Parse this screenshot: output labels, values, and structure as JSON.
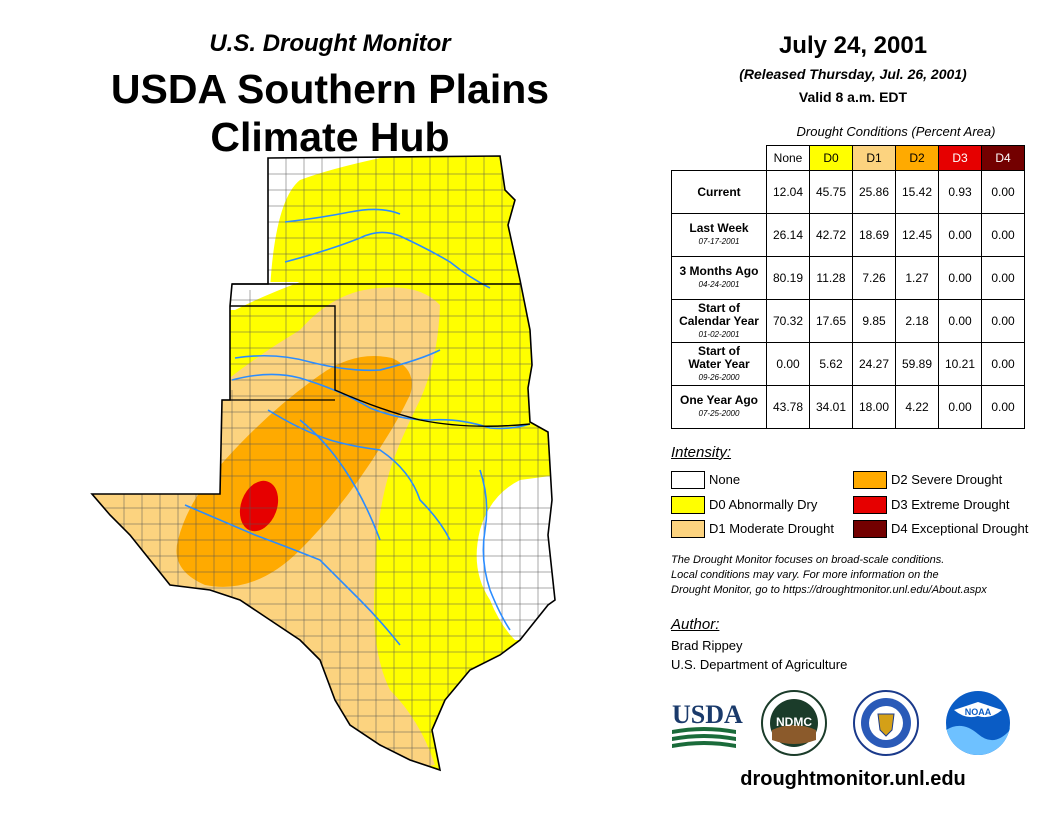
{
  "header": {
    "subtitle": "U.S. Drought Monitor",
    "title_line1": "USDA Southern Plains",
    "title_line2": "Climate Hub"
  },
  "info": {
    "date": "July 24, 2001",
    "released": "(Released Thursday, Jul. 26, 2001)",
    "valid": "Valid 8 a.m. EDT"
  },
  "table": {
    "title": "Drought Conditions (Percent Area)",
    "columns": [
      "None",
      "D0",
      "D1",
      "D2",
      "D3",
      "D4"
    ],
    "rows": [
      {
        "label1": "Current",
        "label2": "",
        "date": "",
        "values": [
          "12.04",
          "45.75",
          "25.86",
          "15.42",
          "0.93",
          "0.00"
        ]
      },
      {
        "label1": "Last Week",
        "label2": "",
        "date": "07-17-2001",
        "values": [
          "26.14",
          "42.72",
          "18.69",
          "12.45",
          "0.00",
          "0.00"
        ]
      },
      {
        "label1": "3 Months Ago",
        "label2": "",
        "date": "04-24-2001",
        "values": [
          "80.19",
          "11.28",
          "7.26",
          "1.27",
          "0.00",
          "0.00"
        ]
      },
      {
        "label1": "Start of",
        "label2": "Calendar Year",
        "date": "01-02-2001",
        "values": [
          "70.32",
          "17.65",
          "9.85",
          "2.18",
          "0.00",
          "0.00"
        ]
      },
      {
        "label1": "Start of",
        "label2": "Water Year",
        "date": "09-26-2000",
        "values": [
          "0.00",
          "5.62",
          "24.27",
          "59.89",
          "10.21",
          "0.00"
        ]
      },
      {
        "label1": "One Year Ago",
        "label2": "",
        "date": "07-25-2000",
        "values": [
          "43.78",
          "34.01",
          "18.00",
          "4.22",
          "0.00",
          "0.00"
        ]
      }
    ]
  },
  "legend": {
    "title": "Intensity:",
    "items": [
      {
        "label": "None",
        "color": "#ffffff"
      },
      {
        "label": "D0 Abnormally Dry",
        "color": "#ffff00"
      },
      {
        "label": "D1 Moderate Drought",
        "color": "#fcd37f"
      },
      {
        "label": "D2 Severe Drought",
        "color": "#ffaa00"
      },
      {
        "label": "D3 Extreme Drought",
        "color": "#e60000"
      },
      {
        "label": "D4 Exceptional Drought",
        "color": "#730000"
      }
    ]
  },
  "note": {
    "line1": "The Drought Monitor focuses on broad-scale conditions.",
    "line2": "Local conditions may vary. For more information on the",
    "line3": "Drought Monitor, go to https://droughtmonitor.unl.edu/About.aspx"
  },
  "author": {
    "title": "Author:",
    "name": "Brad Rippey",
    "org": "U.S. Department of Agriculture"
  },
  "logos": {
    "usda": "USDA",
    "ndmc": "NDMC",
    "noaa": "NOAA"
  },
  "footer": {
    "url": "droughtmonitor.unl.edu"
  }
}
